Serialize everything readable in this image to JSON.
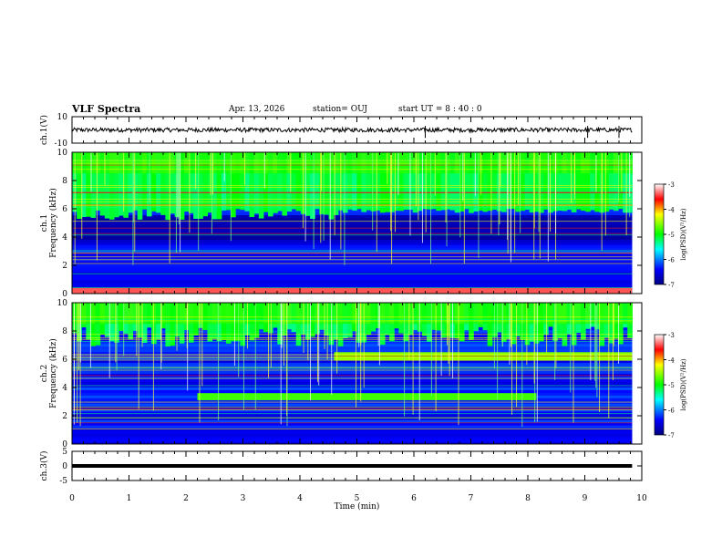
{
  "header": {
    "title": "VLF Spectra",
    "date": "Apr. 13, 2026",
    "station": "station= OUJ",
    "start": "start  UT =  8 : 40 : 0"
  },
  "chart_data": [
    {
      "type": "line",
      "name": "ch.1 waveform",
      "ylabel": "ch.1(V)",
      "ylim": [
        -10,
        10
      ],
      "yticks": [
        "10",
        "-10"
      ],
      "xlim": [
        0,
        9.83
      ],
      "mean_value": 0,
      "spikes_at_min": [
        6.2,
        9.05,
        9.6
      ]
    },
    {
      "type": "heatmap",
      "name": "ch.1 spectrogram",
      "ylabel": "ch.1\nFrequency (kHz)",
      "ylim": [
        0,
        10
      ],
      "yticks": [
        "0",
        "2",
        "4",
        "6",
        "8",
        "10"
      ],
      "xlim": [
        0,
        9.83
      ],
      "colorbar": {
        "label": "log(PSD)(V²/Hz)",
        "range": [
          -7,
          -3
        ],
        "ticks": [
          "-3",
          "-4",
          "-5",
          "-6",
          "-7"
        ]
      },
      "features": [
        {
          "kind": "band",
          "t0": 0,
          "t1": 9.83,
          "f0": 0,
          "f1": 0.4,
          "level": -3.4
        },
        {
          "kind": "emission",
          "t0": 0,
          "t1": 4.6,
          "f_low_from": 5.2,
          "f_low_to": 5.6
        },
        {
          "kind": "emission",
          "t0": 4.6,
          "t1": 9.83,
          "f_low_from": 5.6,
          "f_low_to": 5.9
        },
        {
          "kind": "line",
          "t0": 0,
          "t1": 9.83,
          "f": 7.2,
          "level": -3.6
        }
      ]
    },
    {
      "type": "heatmap",
      "name": "ch.2 spectrogram",
      "ylabel": "ch.2\nFrequency (kHz)",
      "ylim": [
        0,
        10
      ],
      "yticks": [
        "0",
        "2",
        "4",
        "6",
        "8",
        "10"
      ],
      "xlim": [
        0,
        9.83
      ],
      "colorbar": {
        "label": "log(PSD)(V²/Hz)",
        "range": [
          -7,
          -3
        ],
        "ticks": [
          "-3",
          "-4",
          "-5",
          "-6",
          "-7"
        ]
      },
      "features": [
        {
          "kind": "band",
          "t0": 4.6,
          "t1": 9.83,
          "f0": 5.9,
          "f1": 6.5,
          "level": -4.6
        },
        {
          "kind": "band",
          "t0": 2.2,
          "t1": 8.15,
          "f0": 3.1,
          "f1": 3.6,
          "level": -4.8
        },
        {
          "kind": "emission",
          "t0": 0,
          "t1": 9.83,
          "f_low_from": 7.0,
          "f_low_to": 7.0
        }
      ]
    },
    {
      "type": "line",
      "name": "ch.3 waveform",
      "ylabel": "ch.3(V)",
      "ylim": [
        -5,
        5
      ],
      "yticks": [
        "5",
        "0",
        "-5"
      ],
      "xlim": [
        0,
        9.83
      ],
      "mean_value": 0
    }
  ],
  "xaxis": {
    "label": "Time (min)",
    "range": [
      0,
      10
    ],
    "ticks": [
      "0",
      "1",
      "2",
      "3",
      "4",
      "5",
      "6",
      "7",
      "8",
      "9",
      "10"
    ]
  }
}
